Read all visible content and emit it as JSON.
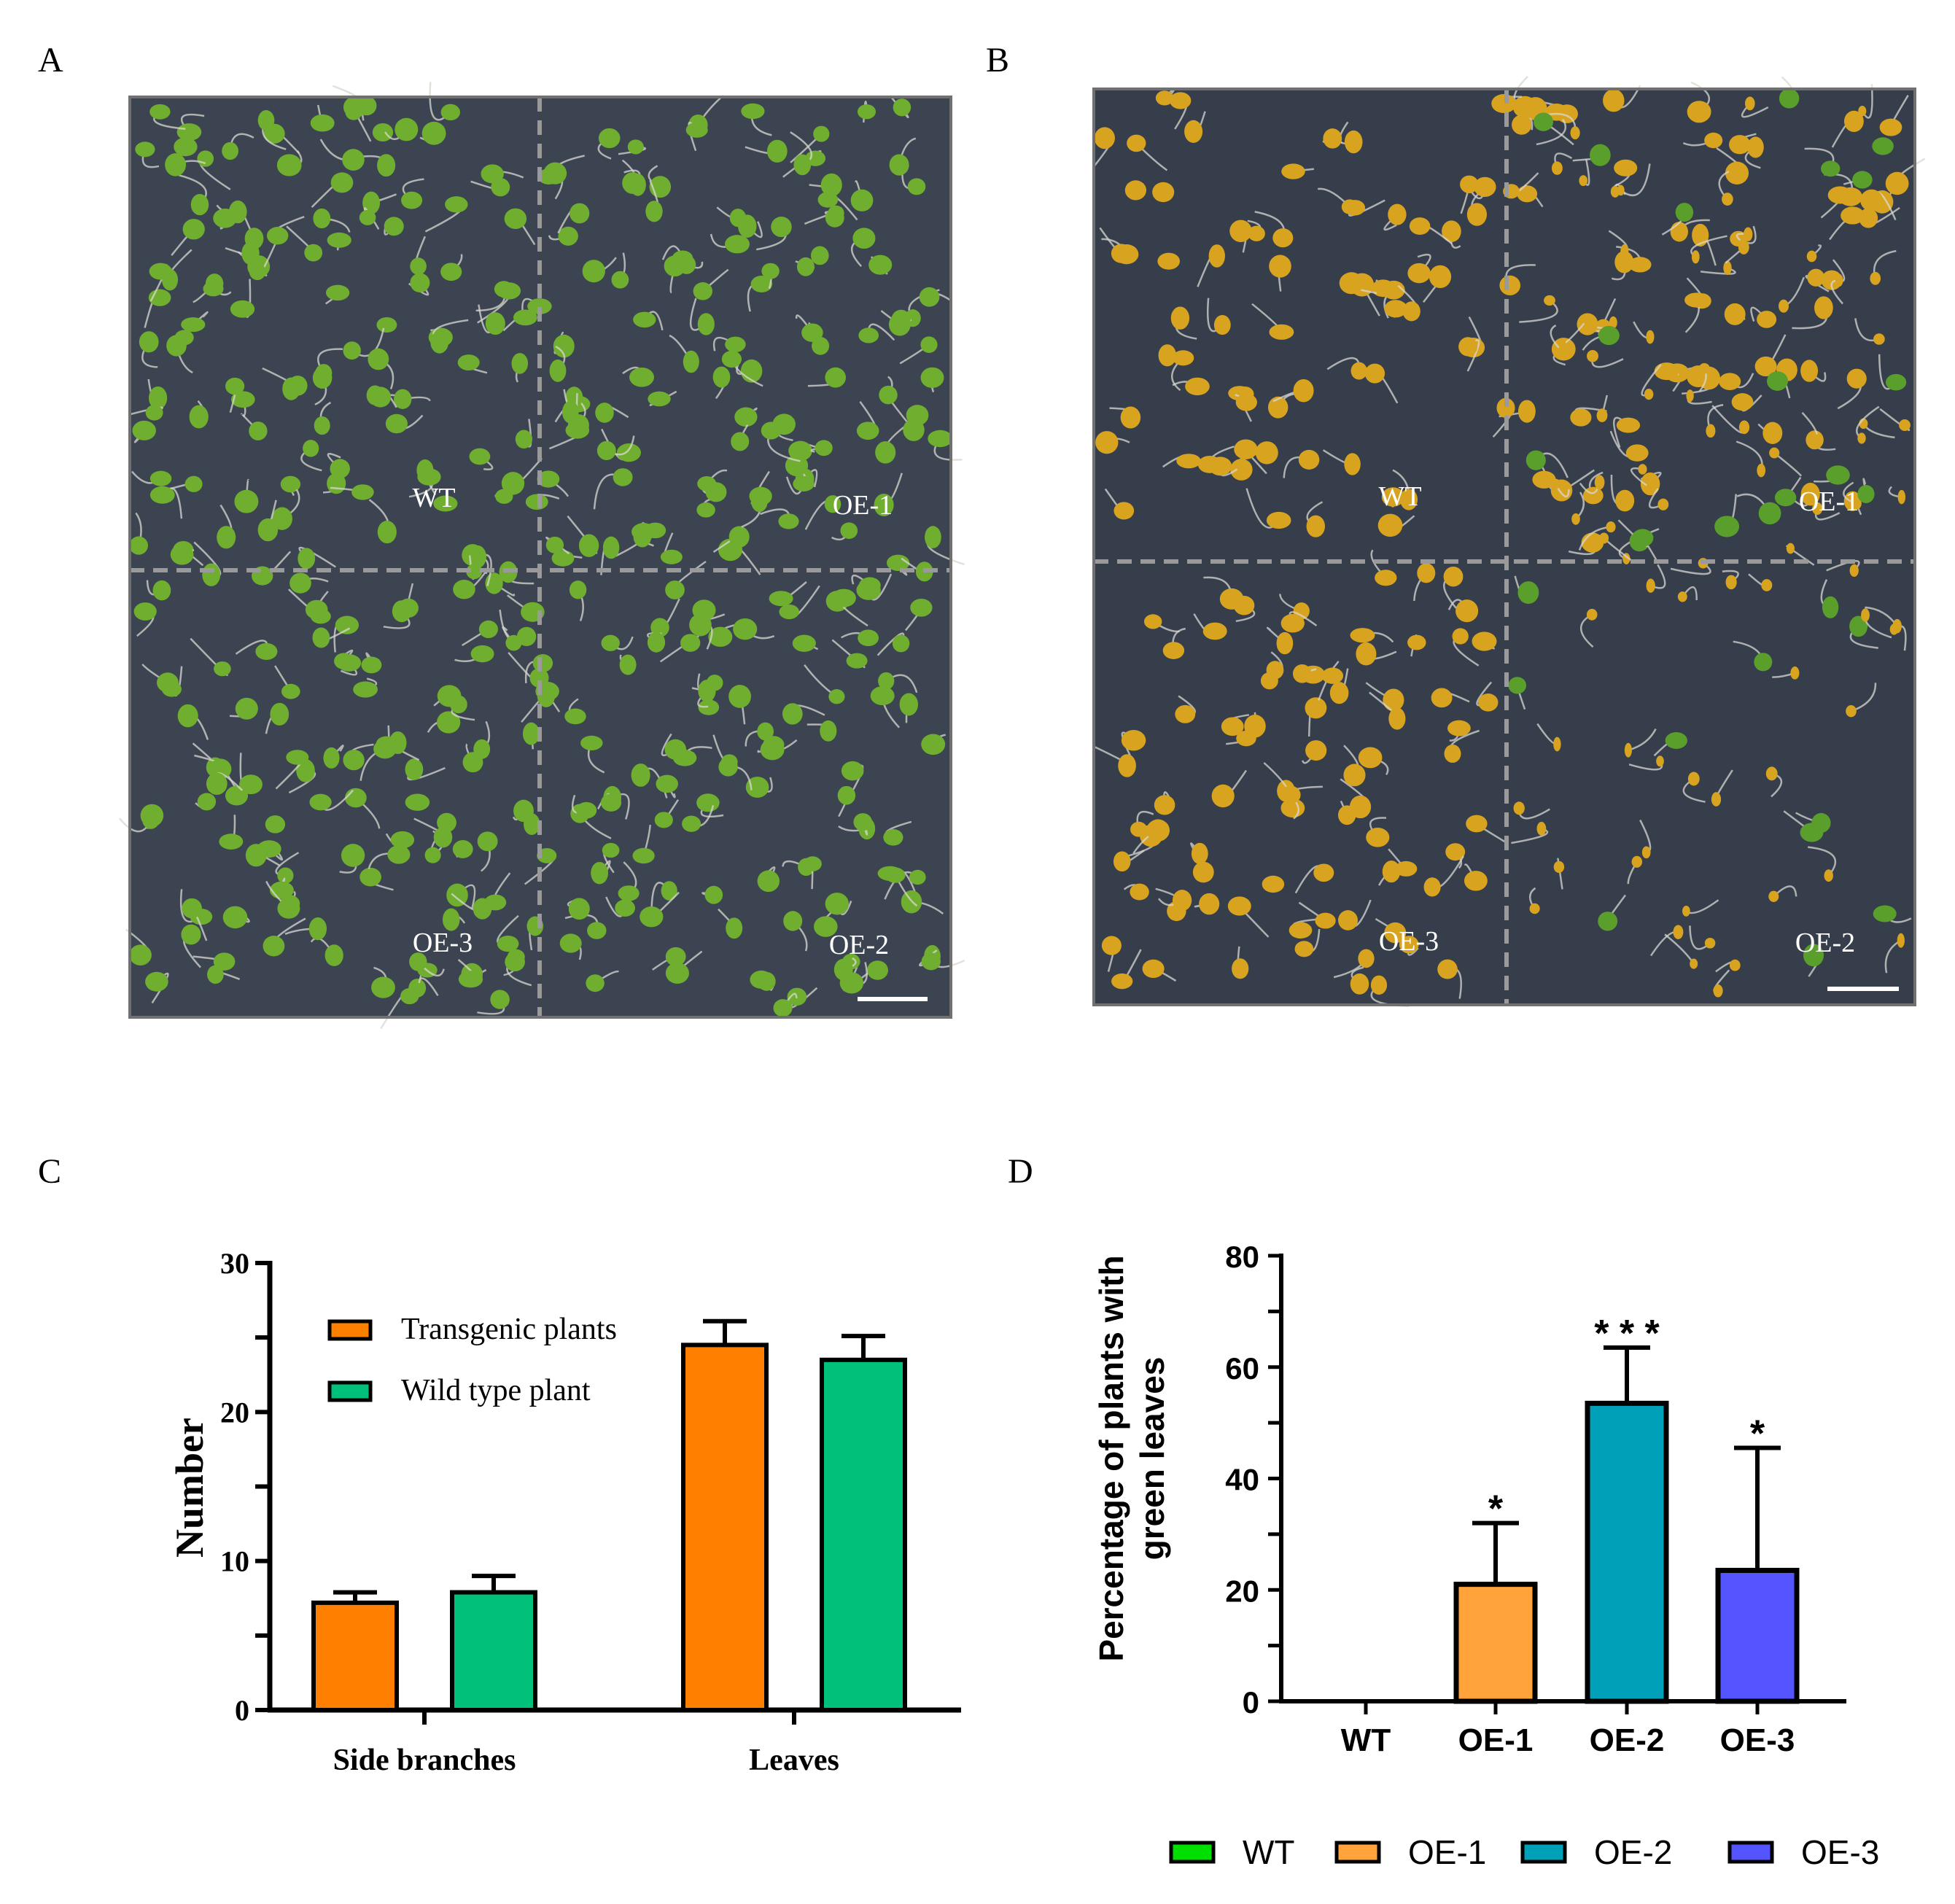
{
  "panels": {
    "a": {
      "letter": "A",
      "quadrant_labels": [
        "WT",
        "OE-1",
        "OE-3",
        "OE-2"
      ],
      "colors": {
        "background": "#3c4452",
        "frame": "#707070",
        "seedling": "#6fae2e",
        "root": "#d8d8d2"
      }
    },
    "b": {
      "letter": "B",
      "quadrant_labels": [
        "WT",
        "OE-1",
        "OE-3",
        "OE-2"
      ],
      "colors": {
        "background": "#363d4b",
        "frame": "#707070",
        "seedling": "#d8a420",
        "root": "#d8d8d2"
      }
    },
    "c": {
      "letter": "C"
    },
    "d": {
      "letter": "D"
    }
  },
  "chart_data": [
    {
      "type": "bar",
      "title": "",
      "xlabel": "",
      "ylabel": "Number",
      "ylim": [
        0,
        30
      ],
      "yticks": [
        0,
        10,
        20,
        30
      ],
      "categories": [
        "Side branches",
        "Leaves"
      ],
      "series": [
        {
          "name": "Transgenic plants",
          "color": "#ff7f00",
          "values": [
            7.2,
            24.5
          ],
          "errors": [
            0.7,
            1.6
          ]
        },
        {
          "name": "Wild type plant",
          "color": "#00c07a",
          "values": [
            7.9,
            23.5
          ],
          "errors": [
            1.1,
            1.6
          ]
        }
      ],
      "legend_position": "top-left",
      "grid": false
    },
    {
      "type": "bar",
      "title": "",
      "xlabel": "",
      "ylabel": "Percentage of plants with green leaves",
      "ylabel_lines": [
        "Percentage of plants with",
        "green leaves"
      ],
      "ylim": [
        0,
        80
      ],
      "yticks": [
        0,
        20,
        40,
        60,
        80
      ],
      "categories": [
        "WT",
        "OE-1",
        "OE-2",
        "OE-3"
      ],
      "values": [
        0,
        21,
        53.5,
        23.5
      ],
      "errors": [
        0,
        11,
        10,
        22
      ],
      "significance": [
        "",
        "*",
        "* * *",
        "*"
      ],
      "colors": [
        "#00e000",
        "#ffa33a",
        "#00a0b8",
        "#5555ff"
      ],
      "legend": [
        "WT",
        "OE-1",
        "OE-2",
        "OE-3"
      ],
      "legend_position": "bottom",
      "grid": false
    }
  ]
}
